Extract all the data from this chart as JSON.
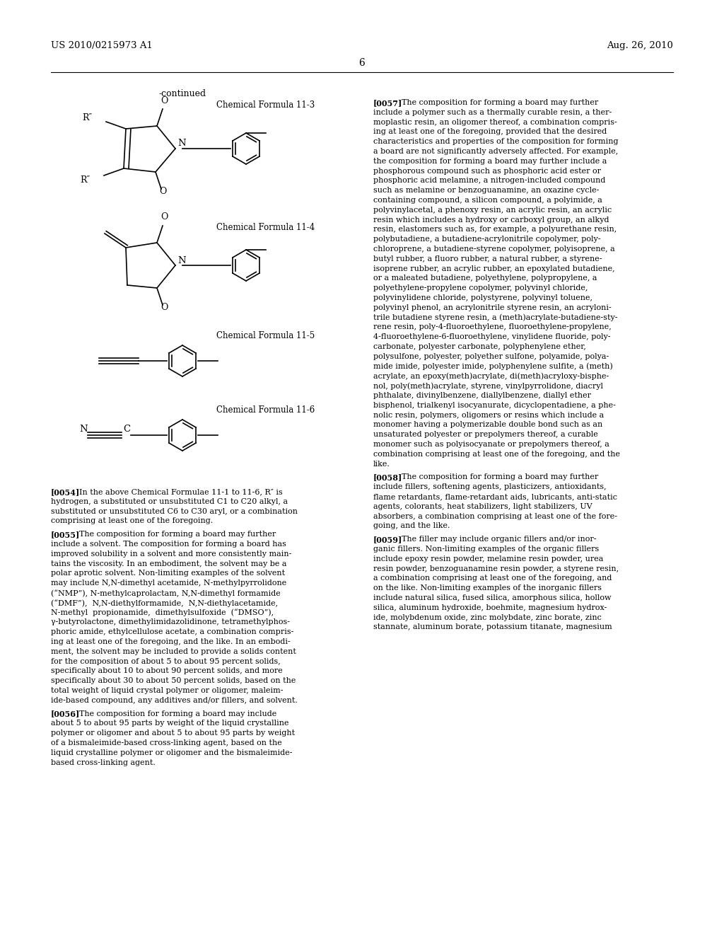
{
  "background_color": "#ffffff",
  "header_left": "US 2010/0215973 A1",
  "header_right": "Aug. 26, 2010",
  "page_number": "6",
  "continued_label": "-continued",
  "chem_label_3": "Chemical Formula 11-3",
  "chem_label_4": "Chemical Formula 11-4",
  "chem_label_5": "Chemical Formula 11-5",
  "chem_label_6": "Chemical Formula 11-6",
  "para_0054_tag": "[0054]",
  "para_0054_lines": [
    "In the above Chemical Formulae 11-1 to 11-6, R″ is",
    "hydrogen, a substituted or unsubstituted C1 to C20 alkyl, a",
    "substituted or unsubstituted C6 to C30 aryl, or a combination",
    "comprising at least one of the foregoing."
  ],
  "para_0055_tag": "[0055]",
  "para_0055_lines": [
    "The composition for forming a board may further",
    "include a solvent. The composition for forming a board has",
    "improved solubility in a solvent and more consistently main-",
    "tains the viscosity. In an embodiment, the solvent may be a",
    "polar aprotic solvent. Non-limiting examples of the solvent",
    "may include N,N-dimethyl acetamide, N-methylpyrrolidone",
    "(“NMP”), N-methylcaprolactam, N,N-dimethyl formamide",
    "(“DMF”),  N,N-diethylformamide,  N,N-diethylacetamide,",
    "N-methyl  propionamide,  dimethylsulfoxide  (“DMSO”),",
    "γ-butyrolactone, dimethylimidazolidinone, tetramethylphos-",
    "phoric amide, ethylcellulose acetate, a combination compris-",
    "ing at least one of the foregoing, and the like. In an embodi-",
    "ment, the solvent may be included to provide a solids content",
    "for the composition of about 5 to about 95 percent solids,",
    "specifically about 10 to about 90 percent solids, and more",
    "specifically about 30 to about 50 percent solids, based on the",
    "total weight of liquid crystal polymer or oligomer, maleim-",
    "ide-based compound, any additives and/or fillers, and solvent."
  ],
  "para_0056_tag": "[0056]",
  "para_0056_lines": [
    "The composition for forming a board may include",
    "about 5 to about 95 parts by weight of the liquid crystalline",
    "polymer or oligomer and about 5 to about 95 parts by weight",
    "of a bismaleimide-based cross-linking agent, based on the",
    "liquid crystalline polymer or oligomer and the bismaleimide-",
    "based cross-linking agent."
  ],
  "para_0057_tag": "[0057]",
  "para_0057_lines": [
    "The composition for forming a board may further",
    "include a polymer such as a thermally curable resin, a ther-",
    "moplastic resin, an oligomer thereof, a combination compris-",
    "ing at least one of the foregoing, provided that the desired",
    "characteristics and properties of the composition for forming",
    "a board are not significantly adversely affected. For example,",
    "the composition for forming a board may further include a",
    "phosphorous compound such as phosphoric acid ester or",
    "phosphoric acid melamine, a nitrogen-included compound",
    "such as melamine or benzoguanamine, an oxazine cycle-",
    "containing compound, a silicon compound, a polyimide, a",
    "polyvinylacetal, a phenoxy resin, an acrylic resin, an acrylic",
    "resin which includes a hydroxy or carboxyl group, an alkyd",
    "resin, elastomers such as, for example, a polyurethane resin,",
    "polybutadiene, a butadiene-acrylonitrile copolymer, poly-",
    "chloroprene, a butadiene-styrene copolymer, polyisoprene, a",
    "butyl rubber, a fluoro rubber, a natural rubber, a styrene-",
    "isoprene rubber, an acrylic rubber, an epoxylated butadiene,",
    "or a maleated butadiene, polyethylene, polypropylene, a",
    "polyethylene-propylene copolymer, polyvinyl chloride,",
    "polyvinylidene chloride, polystyrene, polyvinyl toluene,",
    "polyvinyl phenol, an acrylonitrile styrene resin, an acryloni-",
    "trile butadiene styrene resin, a (meth)acrylate-butadiene-sty-",
    "rene resin, poly-4-fluoroethylene, fluoroethylene-propylene,",
    "4-fluoroethylene-6-fluoroethylene, vinylidene fluoride, poly-",
    "carbonate, polyester carbonate, polyphenylene ether,",
    "polysulfone, polyester, polyether sulfone, polyamide, polya-",
    "mide imide, polyester imide, polyphenylene sulfite, a (meth)",
    "acrylate, an epoxy(meth)acrylate, di(meth)acryloxy-bisphe-",
    "nol, poly(meth)acrylate, styrene, vinylpyrrolidone, diacryl",
    "phthalate, divinylbenzene, diallylbenzene, diallyl ether",
    "bisphenol, trialkenyl isocyanurate, dicyclopentadiene, a phe-",
    "nolic resin, polymers, oligomers or resins which include a",
    "monomer having a polymerizable double bond such as an",
    "unsaturated polyester or prepolymers thereof, a curable",
    "monomer such as polyisocyanate or prepolymers thereof, a",
    "combination comprising at least one of the foregoing, and the",
    "like."
  ],
  "para_0058_tag": "[0058]",
  "para_0058_lines": [
    "The composition for forming a board may further",
    "include fillers, softening agents, plasticizers, antioxidants,",
    "flame retardants, flame-retardant aids, lubricants, anti-static",
    "agents, colorants, heat stabilizers, light stabilizers, UV",
    "absorbers, a combination comprising at least one of the fore-",
    "going, and the like."
  ],
  "para_0059_tag": "[0059]",
  "para_0059_lines": [
    "The filler may include organic fillers and/or inor-",
    "ganic fillers. Non-limiting examples of the organic fillers",
    "include epoxy resin powder, melamine resin powder, urea",
    "resin powder, benzoguanamine resin powder, a styrene resin,",
    "a combination comprising at least one of the foregoing, and",
    "on the like. Non-limiting examples of the inorganic fillers",
    "include natural silica, fused silica, amorphous silica, hollow",
    "silica, aluminum hydroxide, boehmite, magnesium hydrox-",
    "ide, molybdenum oxide, zinc molybdate, zinc borate, zinc",
    "stannate, aluminum borate, potassium titanate, magnesium"
  ]
}
